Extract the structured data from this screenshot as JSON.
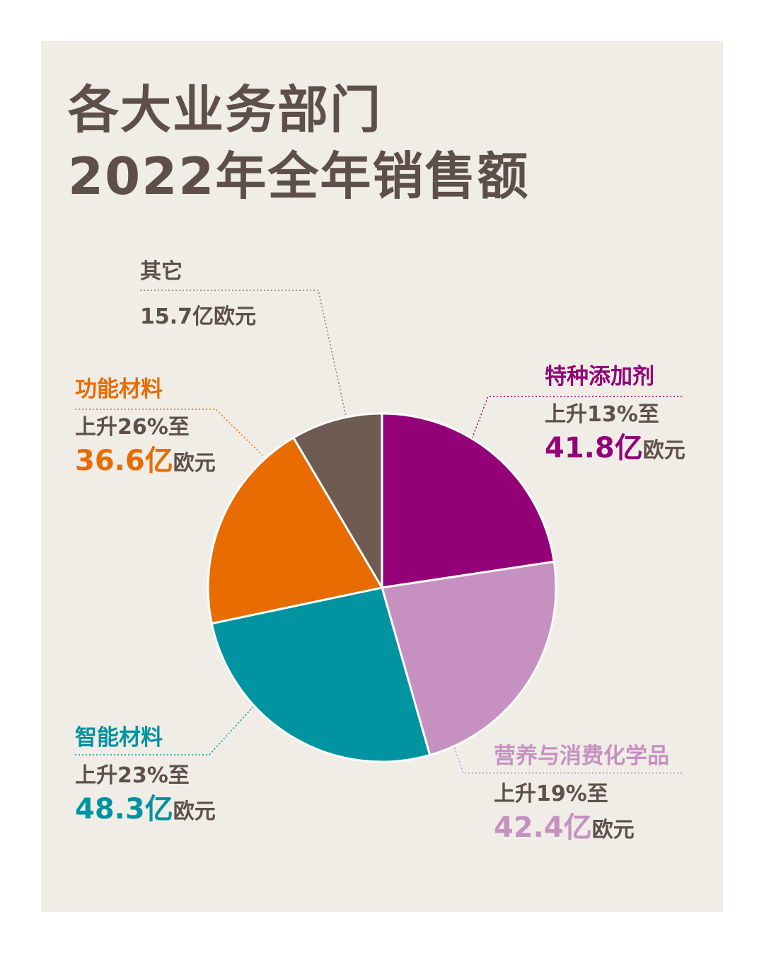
{
  "title": {
    "line1": "各大业务部门",
    "line2": "2022年全年销售额"
  },
  "chart_data": {
    "type": "pie",
    "title": "各大业务部门 2022年全年销售额",
    "unit": "亿欧元",
    "slices": [
      {
        "name": "特种添加剂",
        "value": 41.8,
        "change": "上升13%至",
        "color": "#930078"
      },
      {
        "name": "营养与消费化学品",
        "value": 42.4,
        "change": "上升19%至",
        "color": "#c691c1"
      },
      {
        "name": "智能材料",
        "value": 48.3,
        "change": "上升23%至",
        "color": "#0093a0"
      },
      {
        "name": "功能材料",
        "value": 36.6,
        "change": "上升26%至",
        "color": "#e86c00"
      },
      {
        "name": "其它",
        "value": 15.7,
        "change": "",
        "color": "#6e5b52"
      }
    ]
  },
  "labels": {
    "specialty": {
      "name": "特种添加剂",
      "change": "上升13%至",
      "value": "41.8亿",
      "unit": "欧元"
    },
    "nutrition": {
      "name": "营养与消费化学品",
      "change": "上升19%至",
      "value": "42.4亿",
      "unit": "欧元"
    },
    "smart": {
      "name": "智能材料",
      "change": "上升23%至",
      "value": "48.3亿",
      "unit": "欧元"
    },
    "performance": {
      "name": "功能材料",
      "change": "上升26%至",
      "value": "36.6亿",
      "unit": "欧元"
    },
    "other": {
      "name": "其它",
      "value": "15.7亿欧元"
    }
  },
  "colors": {
    "specialty": "#930078",
    "nutrition": "#c691c1",
    "smart": "#0093a0",
    "performance": "#e86c00",
    "other": "#6e5b52",
    "text": "#5e5049",
    "background": "#f0ede7"
  }
}
